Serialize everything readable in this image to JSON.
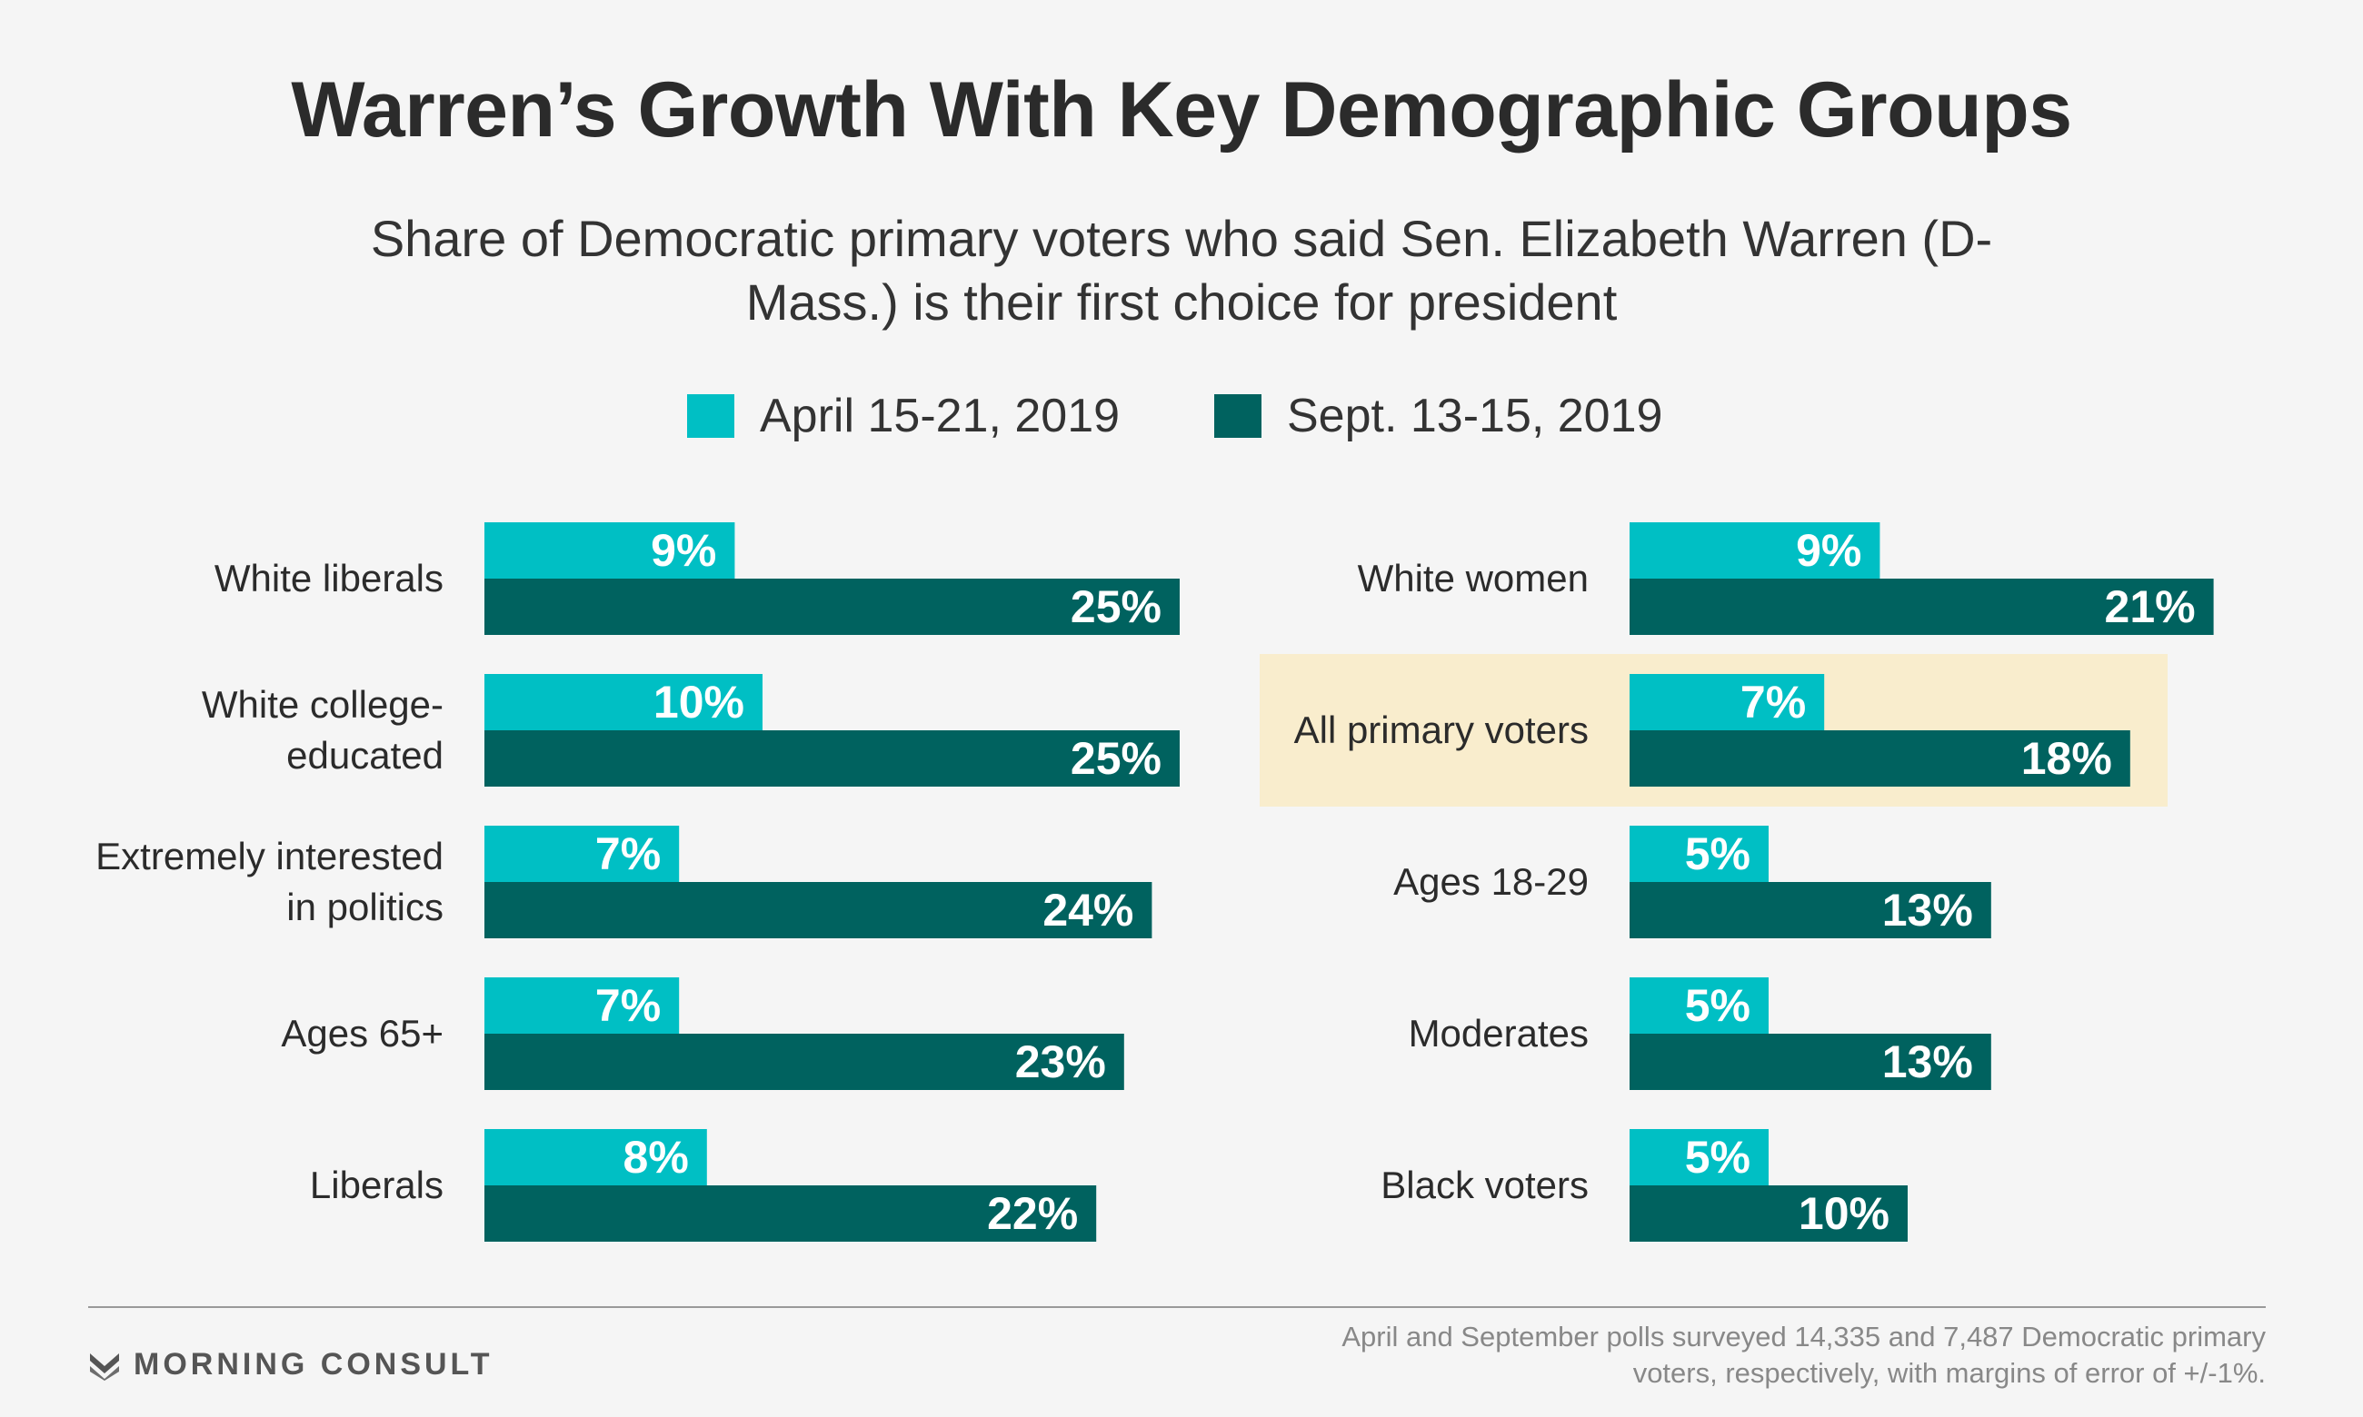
{
  "title": "Warren’s Growth With Key Demographic Groups",
  "subtitle": "Share of Democratic primary voters who said Sen. Elizabeth Warren (D-Mass.) is their first choice for president",
  "legend": [
    {
      "label": "April 15-21, 2019",
      "color": "#00bfc4"
    },
    {
      "label": "Sept. 13-15, 2019",
      "color": "#00625f"
    }
  ],
  "colors": {
    "april": "#00bfc4",
    "sept": "#00625f",
    "highlight": "#f9edcd"
  },
  "logo_text": "MORNING CONSULT",
  "footnote": "April and September polls surveyed 14,335 and 7,487 Democratic primary voters, respectively, with margins of error of +/-1%.",
  "chart_data": {
    "type": "bar",
    "orientation": "horizontal",
    "panels": [
      {
        "categories": [
          {
            "lines": [
              "White liberals"
            ]
          },
          {
            "lines": [
              "White college-",
              "educated"
            ]
          },
          {
            "lines": [
              "Extremely interested",
              "in politics"
            ]
          },
          {
            "lines": [
              "Ages 65+"
            ]
          },
          {
            "lines": [
              "Liberals"
            ]
          }
        ],
        "series": [
          {
            "name": "April 15-21, 2019",
            "values": [
              9,
              10,
              7,
              7,
              8
            ],
            "labels": [
              "9%",
              "10%",
              "7%",
              "7%",
              "8%"
            ]
          },
          {
            "name": "Sept. 13-15, 2019",
            "values": [
              25,
              25,
              24,
              23,
              22
            ],
            "labels": [
              "25%",
              "25%",
              "24%",
              "23%",
              "22%"
            ]
          }
        ]
      },
      {
        "categories": [
          {
            "lines": [
              "White women"
            ]
          },
          {
            "lines": [
              "All primary voters"
            ],
            "highlight": true
          },
          {
            "lines": [
              "Ages 18-29"
            ]
          },
          {
            "lines": [
              "Moderates"
            ]
          },
          {
            "lines": [
              "Black voters"
            ]
          }
        ],
        "series": [
          {
            "name": "April 15-21, 2019",
            "values": [
              9,
              7,
              5,
              5,
              5
            ],
            "labels": [
              "9%",
              "7%",
              "5%",
              "5%",
              "5%"
            ]
          },
          {
            "name": "Sept. 13-15, 2019",
            "values": [
              21,
              18,
              13,
              13,
              10
            ],
            "labels": [
              "21%",
              "18%",
              "13%",
              "13%",
              "10%"
            ]
          }
        ]
      }
    ]
  }
}
